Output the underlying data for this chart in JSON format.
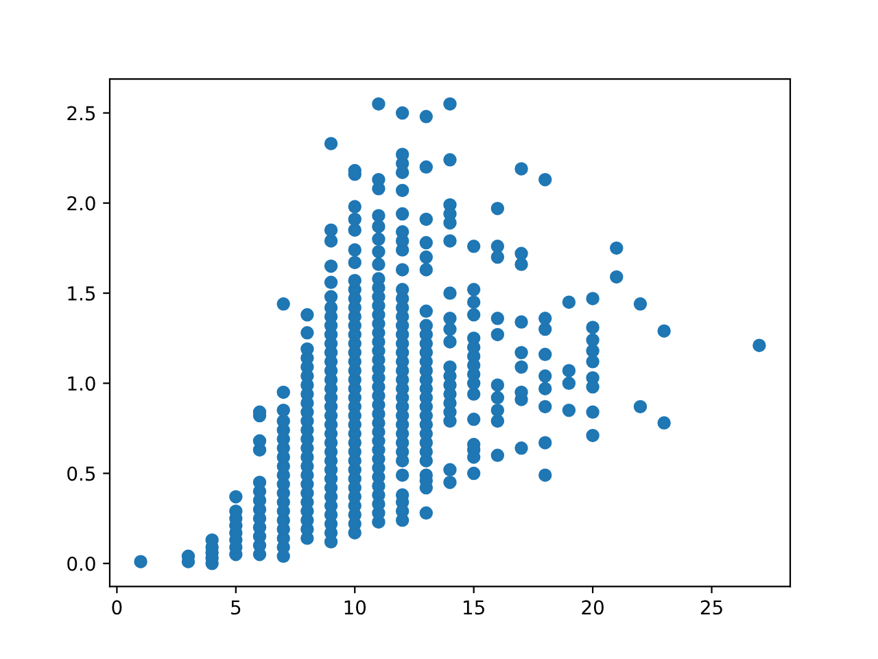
{
  "chart_data": {
    "type": "scatter",
    "color": "#1f77b4",
    "marker": "circle",
    "grid": false,
    "legend": false,
    "x": [
      1,
      3,
      3,
      4,
      4,
      4,
      4,
      4,
      5,
      5,
      5,
      5,
      5,
      5,
      5,
      5,
      6,
      6,
      6,
      6,
      6,
      6,
      6,
      6,
      6,
      6,
      6,
      6,
      6,
      7,
      7,
      7,
      7,
      7,
      7,
      7,
      7,
      7,
      7,
      7,
      7,
      7,
      7,
      7,
      7,
      7,
      7,
      7,
      8,
      8,
      8,
      8,
      8,
      8,
      8,
      8,
      8,
      8,
      8,
      8,
      8,
      8,
      8,
      8,
      8,
      8,
      8,
      8,
      8,
      8,
      8,
      8,
      9,
      9,
      9,
      9,
      9,
      9,
      9,
      9,
      9,
      9,
      9,
      9,
      9,
      9,
      9,
      9,
      9,
      9,
      9,
      9,
      9,
      9,
      9,
      9,
      9,
      9,
      9,
      9,
      9,
      9,
      9,
      9,
      9,
      10,
      10,
      10,
      10,
      10,
      10,
      10,
      10,
      10,
      10,
      10,
      10,
      10,
      10,
      10,
      10,
      10,
      10,
      10,
      10,
      10,
      10,
      10,
      10,
      10,
      10,
      10,
      10,
      10,
      10,
      10,
      10,
      10,
      10,
      10,
      10,
      11,
      11,
      11,
      11,
      11,
      11,
      11,
      11,
      11,
      11,
      11,
      11,
      11,
      11,
      11,
      11,
      11,
      11,
      11,
      11,
      11,
      11,
      11,
      11,
      11,
      11,
      11,
      11,
      11,
      11,
      11,
      11,
      11,
      11,
      11,
      11,
      12,
      12,
      12,
      12,
      12,
      12,
      12,
      12,
      12,
      12,
      12,
      12,
      12,
      12,
      12,
      12,
      12,
      12,
      12,
      12,
      12,
      12,
      12,
      12,
      12,
      12,
      12,
      12,
      12,
      12,
      12,
      12,
      12,
      12,
      12,
      13,
      13,
      13,
      13,
      13,
      13,
      13,
      13,
      13,
      13,
      13,
      13,
      13,
      13,
      13,
      13,
      13,
      13,
      13,
      13,
      13,
      13,
      13,
      13,
      13,
      13,
      13,
      14,
      14,
      14,
      14,
      14,
      14,
      14,
      14,
      14,
      14,
      14,
      14,
      14,
      14,
      14,
      14,
      14,
      14,
      14,
      15,
      15,
      15,
      15,
      15,
      15,
      15,
      15,
      15,
      15,
      15,
      15,
      15,
      15,
      15,
      15,
      16,
      16,
      16,
      16,
      16,
      16,
      16,
      16,
      16,
      16,
      17,
      17,
      17,
      17,
      17,
      17,
      17,
      17,
      17,
      18,
      18,
      18,
      18,
      18,
      18,
      18,
      18,
      18,
      19,
      19,
      19,
      19,
      20,
      20,
      20,
      20,
      20,
      20,
      20,
      20,
      20,
      21,
      21,
      22,
      22,
      23,
      23,
      27
    ],
    "values": [
      0.01,
      0.01,
      0.04,
      0.0,
      0.03,
      0.06,
      0.09,
      0.13,
      0.05,
      0.09,
      0.13,
      0.17,
      0.21,
      0.25,
      0.29,
      0.37,
      0.05,
      0.1,
      0.15,
      0.2,
      0.25,
      0.3,
      0.35,
      0.4,
      0.45,
      0.63,
      0.68,
      0.82,
      0.84,
      0.04,
      0.09,
      0.14,
      0.19,
      0.24,
      0.29,
      0.34,
      0.39,
      0.44,
      0.49,
      0.54,
      0.59,
      0.64,
      0.69,
      0.74,
      0.79,
      0.85,
      0.95,
      1.44,
      0.14,
      0.19,
      0.24,
      0.29,
      0.34,
      0.39,
      0.44,
      0.49,
      0.54,
      0.59,
      0.64,
      0.69,
      0.74,
      0.79,
      0.84,
      0.89,
      0.94,
      0.99,
      1.04,
      1.09,
      1.14,
      1.19,
      1.28,
      1.38,
      0.12,
      0.17,
      0.22,
      0.27,
      0.32,
      0.37,
      0.42,
      0.47,
      0.52,
      0.57,
      0.62,
      0.67,
      0.72,
      0.77,
      0.82,
      0.87,
      0.92,
      0.97,
      1.02,
      1.07,
      1.12,
      1.17,
      1.22,
      1.27,
      1.32,
      1.37,
      1.42,
      1.48,
      1.56,
      1.65,
      1.79,
      1.85,
      2.33,
      0.17,
      0.22,
      0.27,
      0.32,
      0.37,
      0.42,
      0.47,
      0.52,
      0.57,
      0.62,
      0.67,
      0.72,
      0.77,
      0.82,
      0.87,
      0.92,
      0.97,
      1.02,
      1.07,
      1.12,
      1.17,
      1.22,
      1.27,
      1.32,
      1.37,
      1.42,
      1.47,
      1.52,
      1.57,
      1.67,
      1.74,
      1.85,
      1.91,
      1.98,
      2.16,
      2.18,
      0.23,
      0.28,
      0.33,
      0.38,
      0.43,
      0.48,
      0.53,
      0.58,
      0.63,
      0.68,
      0.73,
      0.78,
      0.83,
      0.88,
      0.93,
      0.98,
      1.03,
      1.08,
      1.13,
      1.18,
      1.23,
      1.28,
      1.33,
      1.38,
      1.43,
      1.48,
      1.53,
      1.58,
      1.66,
      1.73,
      1.8,
      1.87,
      1.93,
      2.08,
      2.13,
      2.55,
      0.24,
      0.29,
      0.34,
      0.38,
      0.49,
      0.57,
      0.62,
      0.67,
      0.72,
      0.77,
      0.82,
      0.87,
      0.92,
      0.97,
      1.02,
      1.07,
      1.12,
      1.17,
      1.22,
      1.27,
      1.32,
      1.37,
      1.42,
      1.47,
      1.52,
      1.63,
      1.74,
      1.79,
      1.84,
      1.94,
      2.07,
      2.17,
      2.22,
      2.27,
      2.5,
      0.28,
      0.42,
      0.46,
      0.49,
      0.57,
      0.62,
      0.67,
      0.72,
      0.77,
      0.82,
      0.87,
      0.92,
      0.97,
      1.02,
      1.07,
      1.12,
      1.17,
      1.22,
      1.27,
      1.32,
      1.4,
      1.63,
      1.7,
      1.78,
      1.91,
      2.2,
      2.48,
      0.45,
      0.52,
      0.79,
      0.84,
      0.89,
      0.94,
      0.99,
      1.04,
      1.09,
      1.23,
      1.3,
      1.36,
      1.5,
      1.79,
      1.89,
      1.94,
      1.99,
      2.24,
      2.55,
      0.5,
      0.59,
      0.63,
      0.66,
      0.8,
      0.94,
      1.0,
      1.05,
      1.1,
      1.15,
      1.2,
      1.25,
      1.38,
      1.45,
      1.52,
      1.76,
      0.6,
      0.79,
      0.85,
      0.92,
      0.99,
      1.27,
      1.36,
      1.7,
      1.76,
      1.97,
      0.64,
      0.91,
      0.95,
      1.09,
      1.17,
      1.34,
      1.66,
      1.72,
      2.19,
      0.49,
      0.67,
      0.87,
      0.97,
      1.04,
      1.16,
      1.3,
      1.36,
      2.13,
      0.85,
      1.0,
      1.07,
      1.45,
      0.71,
      0.84,
      0.98,
      1.03,
      1.12,
      1.18,
      1.24,
      1.31,
      1.47,
      1.59,
      1.75,
      0.87,
      1.44,
      0.78,
      1.29,
      1.21
    ],
    "xlim": [
      -0.3,
      28.3
    ],
    "ylim": [
      -0.128,
      2.688
    ],
    "xticks": [
      0,
      5,
      10,
      15,
      20,
      25
    ],
    "yticks": [
      {
        "value": 0,
        "label": "0.0"
      },
      {
        "value": 0.5,
        "label": "0.5"
      },
      {
        "value": 1,
        "label": "1.0"
      },
      {
        "value": 1.5,
        "label": "1.5"
      },
      {
        "value": 2,
        "label": "2.0"
      },
      {
        "value": 2.5,
        "label": "2.5"
      }
    ]
  }
}
